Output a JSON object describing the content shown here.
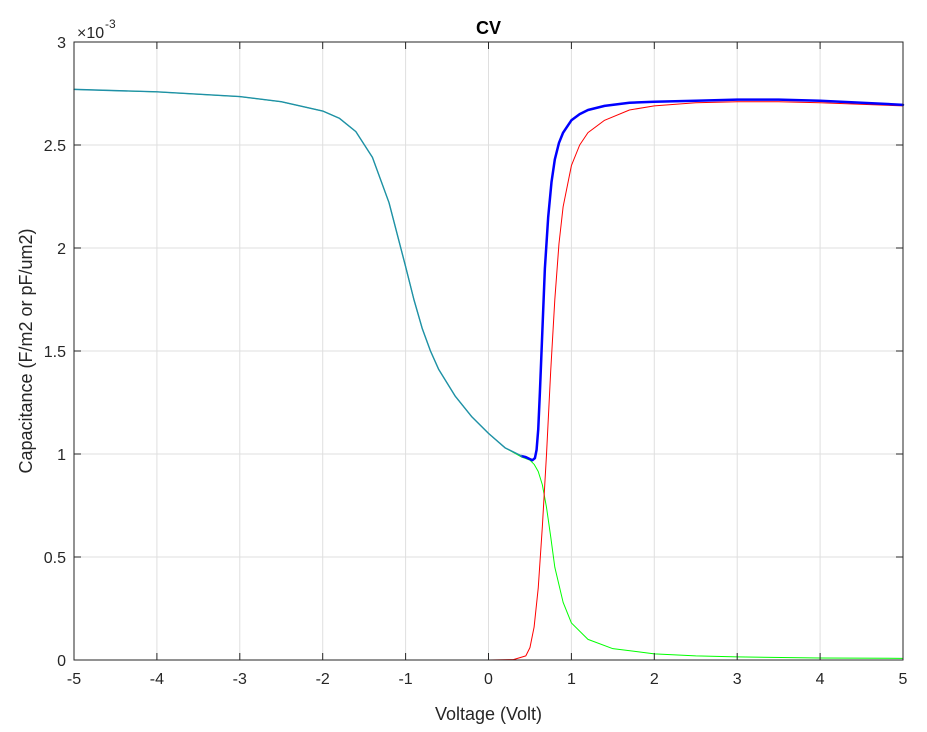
{
  "chart_data": {
    "type": "line",
    "title": "CV",
    "xlabel": "Voltage (Volt)",
    "ylabel": "Capacitance (F/m2 or pF/um2)",
    "y_exponent_label": "×10",
    "y_exponent_power": "-3",
    "xlim": [
      -5,
      5
    ],
    "ylim": [
      0,
      3
    ],
    "grid": true,
    "x_ticks": [
      -5,
      -4,
      -3,
      -2,
      -1,
      0,
      1,
      2,
      3,
      4,
      5
    ],
    "x_tick_labels": [
      "-5",
      "-4",
      "-3",
      "-2",
      "-1",
      "0",
      "1",
      "2",
      "3",
      "4",
      "5"
    ],
    "y_ticks": [
      0,
      0.5,
      1,
      1.5,
      2,
      2.5,
      3
    ],
    "y_tick_labels": [
      "0",
      "0.5",
      "1",
      "1.5",
      "2",
      "2.5",
      "3"
    ],
    "series": [
      {
        "color": "#00ff00",
        "width": 1,
        "x": [
          -5,
          -4,
          -3,
          -2.5,
          -2,
          -1.8,
          -1.6,
          -1.4,
          -1.2,
          -1.0,
          -0.9,
          -0.8,
          -0.7,
          -0.6,
          -0.4,
          -0.2,
          0,
          0.2,
          0.4,
          0.5,
          0.55,
          0.6,
          0.65,
          0.7,
          0.75,
          0.8,
          0.9,
          1.0,
          1.2,
          1.5,
          2,
          2.5,
          3,
          4,
          5
        ],
        "values": [
          2.77,
          2.758,
          2.735,
          2.71,
          2.665,
          2.63,
          2.565,
          2.44,
          2.22,
          1.91,
          1.75,
          1.61,
          1.5,
          1.41,
          1.28,
          1.18,
          1.1,
          1.03,
          0.985,
          0.97,
          0.95,
          0.915,
          0.85,
          0.74,
          0.6,
          0.45,
          0.28,
          0.18,
          0.1,
          0.055,
          0.03,
          0.02,
          0.015,
          0.01,
          0.008
        ]
      },
      {
        "color": "#ff0000",
        "width": 1,
        "x": [
          -5,
          -2,
          0,
          0.3,
          0.45,
          0.5,
          0.55,
          0.6,
          0.65,
          0.7,
          0.75,
          0.8,
          0.85,
          0.9,
          1.0,
          1.1,
          1.2,
          1.4,
          1.7,
          2,
          2.5,
          3,
          3.5,
          4,
          5
        ],
        "values": [
          0,
          0,
          0,
          0.002,
          0.02,
          0.06,
          0.16,
          0.35,
          0.65,
          1.0,
          1.4,
          1.75,
          2.02,
          2.2,
          2.4,
          2.5,
          2.56,
          2.62,
          2.67,
          2.69,
          2.705,
          2.71,
          2.71,
          2.705,
          2.69
        ]
      },
      {
        "color": "#0000ff",
        "width": 2.5,
        "x": [
          0.4,
          0.45,
          0.5,
          0.53,
          0.56,
          0.58,
          0.6,
          0.62,
          0.65,
          0.68,
          0.72,
          0.76,
          0.8,
          0.85,
          0.9,
          1.0,
          1.1,
          1.2,
          1.4,
          1.7,
          2,
          2.5,
          3,
          3.5,
          4,
          4.5,
          5
        ],
        "values": [
          0.99,
          0.985,
          0.975,
          0.97,
          0.98,
          1.02,
          1.12,
          1.3,
          1.6,
          1.9,
          2.15,
          2.32,
          2.43,
          2.51,
          2.56,
          2.62,
          2.65,
          2.67,
          2.69,
          2.705,
          2.71,
          2.715,
          2.72,
          2.72,
          2.715,
          2.705,
          2.695
        ]
      },
      {
        "color": "#1f8fa8",
        "width": 1.4,
        "x": [
          -5,
          -4,
          -3,
          -2.5,
          -2,
          -1.8,
          -1.6,
          -1.4,
          -1.2,
          -1.0,
          -0.9,
          -0.8,
          -0.7,
          -0.6,
          -0.4,
          -0.2,
          0,
          0.2,
          0.4
        ],
        "values": [
          2.77,
          2.758,
          2.735,
          2.71,
          2.665,
          2.63,
          2.565,
          2.44,
          2.22,
          1.91,
          1.75,
          1.61,
          1.5,
          1.41,
          1.28,
          1.18,
          1.1,
          1.03,
          0.99
        ]
      }
    ]
  }
}
